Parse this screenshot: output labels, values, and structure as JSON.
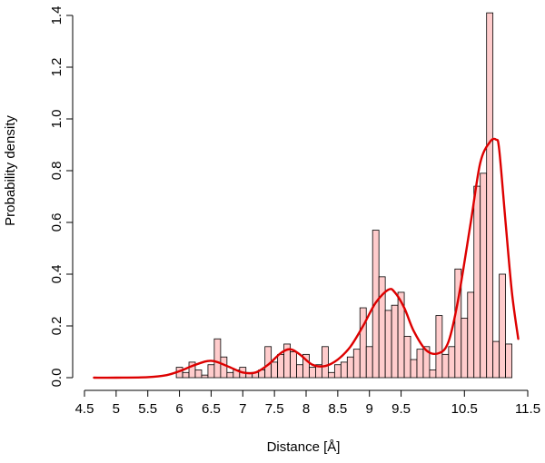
{
  "chart_data": {
    "type": "bar",
    "title": "",
    "xlabel": "Distance [Å]",
    "ylabel": "Probability density",
    "xlim": [
      4.5,
      11.5
    ],
    "ylim": [
      0,
      1.4
    ],
    "x_ticks": [
      "4.5",
      "5",
      "5.5",
      "6",
      "6.5",
      "7",
      "7.5",
      "8",
      "8.5",
      "9",
      "9.5",
      "10.5",
      "11.5"
    ],
    "x_tick_values": [
      4.5,
      5,
      5.5,
      6,
      6.5,
      7,
      7.5,
      8,
      8.5,
      9,
      9.5,
      10.5,
      11.5
    ],
    "y_ticks": [
      "0.0",
      "0.2",
      "0.4",
      "0.6",
      "0.8",
      "1.0",
      "1.2",
      "1.4"
    ],
    "y_tick_values": [
      0,
      0.2,
      0.4,
      0.6,
      0.8,
      1.0,
      1.2,
      1.4
    ],
    "histogram": {
      "bin_start": 4.65,
      "bin_width": 0.1,
      "values": [
        0,
        0,
        0,
        0,
        0,
        0,
        0,
        0,
        0,
        0,
        0,
        0,
        0,
        0.04,
        0.02,
        0.06,
        0.03,
        0.01,
        0.05,
        0.15,
        0.08,
        0.02,
        0.03,
        0.04,
        0.02,
        0.02,
        0.03,
        0.12,
        0.06,
        0.09,
        0.13,
        0.1,
        0.05,
        0.09,
        0.04,
        0.05,
        0.12,
        0.02,
        0.05,
        0.06,
        0.08,
        0.11,
        0.27,
        0.12,
        0.57,
        0.39,
        0.26,
        0.28,
        0.33,
        0.16,
        0.07,
        0.11,
        0.12,
        0.03,
        0.24,
        0.09,
        0.12,
        0.42,
        0.23,
        0.33,
        0.74,
        0.79,
        1.41,
        0.14,
        0.4,
        0.13
      ],
      "fill": "#ffcccc",
      "stroke": "#000000"
    },
    "density": {
      "x": [
        4.65,
        5.0,
        5.5,
        5.8,
        6.0,
        6.2,
        6.4,
        6.5,
        6.6,
        6.8,
        7.0,
        7.2,
        7.4,
        7.6,
        7.75,
        7.9,
        8.1,
        8.3,
        8.5,
        8.7,
        8.9,
        9.1,
        9.3,
        9.4,
        9.55,
        9.7,
        9.9,
        10.1,
        10.25,
        10.4,
        10.6,
        10.75,
        10.9,
        11.0,
        11.05,
        11.15,
        11.25,
        11.35
      ],
      "y": [
        0.0,
        0.0,
        0.002,
        0.01,
        0.025,
        0.045,
        0.062,
        0.065,
        0.06,
        0.04,
        0.02,
        0.02,
        0.05,
        0.095,
        0.11,
        0.09,
        0.05,
        0.045,
        0.07,
        0.12,
        0.2,
        0.29,
        0.34,
        0.33,
        0.27,
        0.18,
        0.105,
        0.095,
        0.14,
        0.3,
        0.6,
        0.83,
        0.91,
        0.92,
        0.88,
        0.6,
        0.33,
        0.15
      ],
      "color": "#dd0000"
    },
    "grid": false,
    "legend": "none"
  }
}
